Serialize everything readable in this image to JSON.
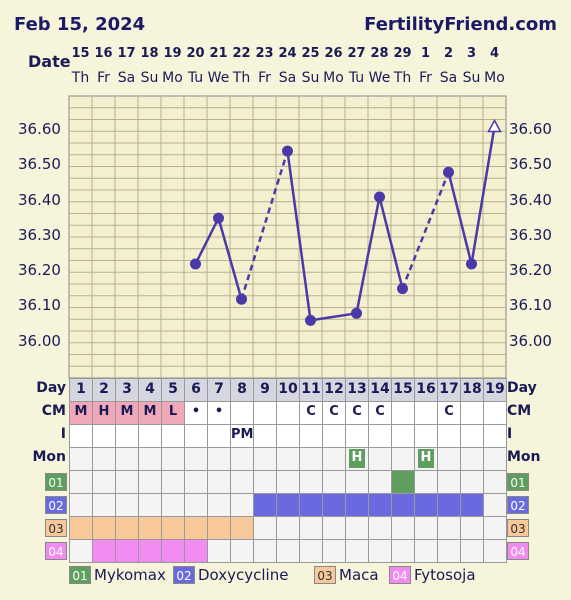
{
  "header": {
    "date": "Feb 15, 2024",
    "site": "FertilityFriend.com"
  },
  "labels": {
    "date_row": "Date",
    "day_row": "Day",
    "cm_row": "CM",
    "i_row": "I",
    "mon_row": "Mon"
  },
  "days": [
    {
      "date": "15",
      "wd": "Th"
    },
    {
      "date": "16",
      "wd": "Fr"
    },
    {
      "date": "17",
      "wd": "Sa"
    },
    {
      "date": "18",
      "wd": "Su"
    },
    {
      "date": "19",
      "wd": "Mo"
    },
    {
      "date": "20",
      "wd": "Tu"
    },
    {
      "date": "21",
      "wd": "We"
    },
    {
      "date": "22",
      "wd": "Th"
    },
    {
      "date": "23",
      "wd": "Fr"
    },
    {
      "date": "24",
      "wd": "Sa"
    },
    {
      "date": "25",
      "wd": "Su"
    },
    {
      "date": "26",
      "wd": "Mo"
    },
    {
      "date": "27",
      "wd": "Tu"
    },
    {
      "date": "28",
      "wd": "We"
    },
    {
      "date": "29",
      "wd": "Th"
    },
    {
      "date": "1",
      "wd": "Fr"
    },
    {
      "date": "2",
      "wd": "Sa"
    },
    {
      "date": "3",
      "wd": "Su"
    },
    {
      "date": "4",
      "wd": "Mo"
    }
  ],
  "cycle_days": [
    "1",
    "2",
    "3",
    "4",
    "5",
    "6",
    "7",
    "8",
    "9",
    "10",
    "11",
    "12",
    "13",
    "14",
    "15",
    "16",
    "17",
    "18",
    "19"
  ],
  "cm": [
    "M",
    "H",
    "M",
    "M",
    "L",
    "•",
    "•",
    "",
    "",
    "",
    "C",
    "C",
    "C",
    "C",
    "",
    "",
    "C",
    "",
    ""
  ],
  "intercourse": [
    "",
    "",
    "",
    "",
    "",
    "",
    "",
    "PM",
    "",
    "",
    "",
    "",
    "",
    "",
    "",
    "",
    "",
    "",
    ""
  ],
  "monitor": [
    "",
    "",
    "",
    "",
    "",
    "",
    "",
    "",
    "",
    "",
    "",
    "",
    "H",
    "",
    "",
    "H",
    "",
    "",
    ""
  ],
  "colors": {
    "line": "#4a3aa8",
    "menses": "#f0a8b8",
    "med01": "#5e9e5e",
    "med02": "#6a6ae0",
    "med03": "#f7c89a",
    "med04": "#f08cf0"
  },
  "medications": [
    {
      "code": "01",
      "name": "Mykomax",
      "color": "#5e9e5e",
      "days": [
        15
      ]
    },
    {
      "code": "02",
      "name": "Doxycycline",
      "color": "#6a6ae0",
      "days": [
        9,
        10,
        11,
        12,
        13,
        14,
        15,
        16,
        17,
        18
      ]
    },
    {
      "code": "03",
      "name": "Maca",
      "color": "#f7c89a",
      "days": [
        1,
        2,
        3,
        4,
        5,
        6,
        7,
        8
      ]
    },
    {
      "code": "04",
      "name": "Fytosoja",
      "color": "#f08cf0",
      "days": [
        2,
        3,
        4,
        5,
        6
      ]
    }
  ],
  "chart_data": {
    "type": "line",
    "x": [
      "15",
      "16",
      "17",
      "18",
      "19",
      "20",
      "21",
      "22",
      "23",
      "24",
      "25",
      "26",
      "27",
      "28",
      "29",
      "1",
      "2",
      "3",
      "4"
    ],
    "temps": [
      null,
      null,
      null,
      null,
      null,
      36.22,
      36.35,
      36.12,
      null,
      36.54,
      36.06,
      null,
      36.08,
      36.41,
      36.15,
      null,
      36.48,
      36.22,
      36.61
    ],
    "dashed_segments": [
      [
        8,
        10
      ],
      [
        13,
        15
      ],
      [
        15,
        17
      ]
    ],
    "open_marker_day": 19,
    "yticks": [
      "36.60",
      "36.50",
      "36.40",
      "36.30",
      "36.20",
      "36.10",
      "36.00"
    ],
    "ylim": [
      35.86,
      36.72
    ],
    "menses_days": [
      1,
      2,
      3,
      4,
      5
    ]
  }
}
